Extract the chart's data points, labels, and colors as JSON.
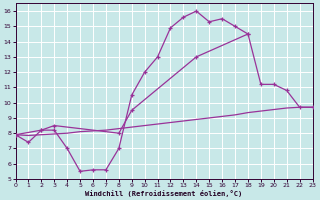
{
  "xlabel": "Windchill (Refroidissement éolien,°C)",
  "background_color": "#c8e8e8",
  "line_color": "#993399",
  "grid_color": "#ffffff",
  "xlim": [
    0,
    23
  ],
  "ylim": [
    5,
    16.5
  ],
  "xticks": [
    0,
    1,
    2,
    3,
    4,
    5,
    6,
    7,
    8,
    9,
    10,
    11,
    12,
    13,
    14,
    15,
    16,
    17,
    18,
    19,
    20,
    21,
    22,
    23
  ],
  "yticks": [
    5,
    6,
    7,
    8,
    9,
    10,
    11,
    12,
    13,
    14,
    15,
    16
  ],
  "curve1_x": [
    0,
    1,
    2,
    3,
    4,
    5,
    6,
    7,
    8,
    9,
    10,
    11,
    12,
    13,
    14,
    15,
    16,
    17,
    18
  ],
  "curve1_y": [
    7.9,
    7.4,
    8.2,
    8.2,
    7.0,
    5.5,
    5.6,
    5.6,
    7.0,
    10.5,
    12.0,
    13.0,
    14.9,
    15.6,
    16.0,
    15.3,
    15.5,
    15.0,
    14.5
  ],
  "curve2_x": [
    0,
    2,
    3,
    8,
    9,
    14,
    18,
    19,
    20,
    21,
    22,
    23
  ],
  "curve2_y": [
    7.9,
    8.2,
    8.5,
    8.0,
    9.5,
    13.0,
    14.5,
    11.2,
    11.2,
    10.8,
    9.7,
    9.7
  ],
  "curve3_x": [
    0,
    1,
    2,
    3,
    4,
    5,
    6,
    7,
    8,
    9,
    10,
    11,
    12,
    13,
    14,
    15,
    16,
    17,
    18,
    19,
    20,
    21,
    22,
    23
  ],
  "curve3_y": [
    7.9,
    7.85,
    7.9,
    7.95,
    8.0,
    8.1,
    8.15,
    8.2,
    8.3,
    8.4,
    8.5,
    8.6,
    8.7,
    8.8,
    8.9,
    9.0,
    9.1,
    9.2,
    9.35,
    9.45,
    9.55,
    9.65,
    9.7,
    9.7
  ]
}
